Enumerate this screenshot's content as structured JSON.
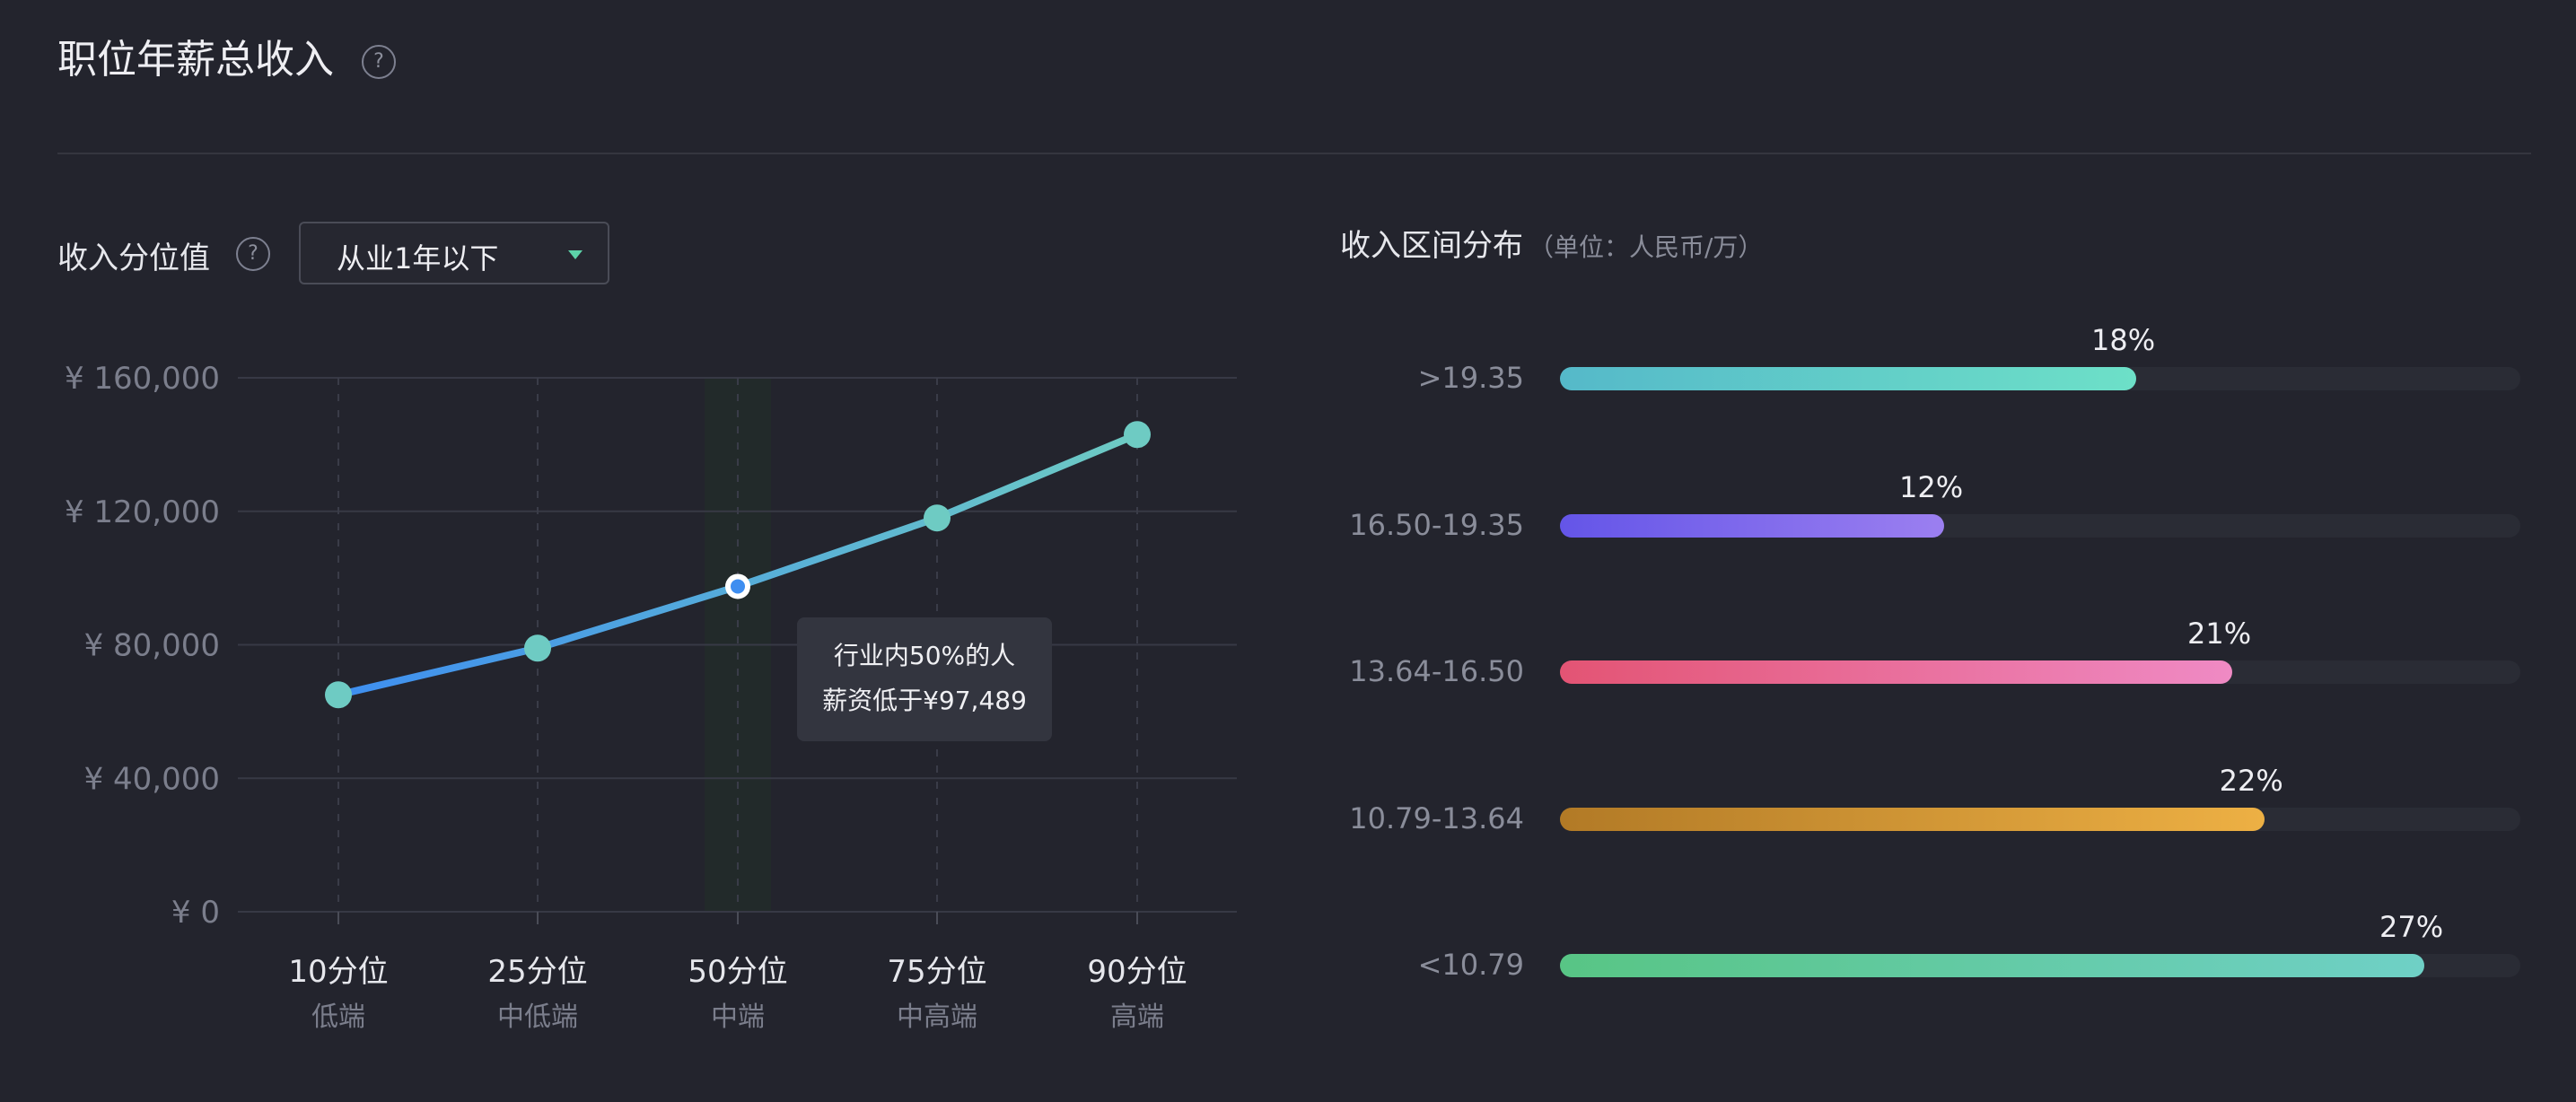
{
  "header": {
    "title": "职位年薪总收入"
  },
  "percentile": {
    "label": "收入分位值",
    "dropdown_value": "从业1年以下"
  },
  "tooltip": {
    "line1": "行业内50%的人",
    "line2": "薪资低于¥97,489"
  },
  "distribution": {
    "title": "收入区间分布",
    "unit": "（单位：人民币/万）"
  },
  "colors": {
    "background": "#23242d",
    "line_start": "#3e8ef0",
    "line_end": "#6ecbc3",
    "marker": "#6ecbc3"
  },
  "chart_data": [
    {
      "type": "line",
      "categories": [
        "10分位",
        "25分位",
        "50分位",
        "75分位",
        "90分位"
      ],
      "sublabels": [
        "低端",
        "中低端",
        "中端",
        "中高端",
        "高端"
      ],
      "series": [
        {
          "values": [
            65000,
            79000,
            97489,
            118000,
            143000
          ]
        }
      ],
      "yticks": [
        "¥ 0",
        "¥ 40,000",
        "¥ 80,000",
        "¥ 120,000",
        "¥ 160,000"
      ],
      "ylim": [
        0,
        160000
      ],
      "highlight_index": 2,
      "grid": true
    },
    {
      "type": "bar",
      "orientation": "horizontal",
      "categories": [
        ">19.35",
        "16.50-19.35",
        "13.64-16.50",
        "10.79-13.64",
        "<10.79"
      ],
      "values": [
        18,
        12,
        21,
        22,
        27
      ],
      "value_labels": [
        "18%",
        "12%",
        "21%",
        "22%",
        "27%"
      ],
      "xlim": [
        0,
        30
      ],
      "colors": [
        [
          "#55b9c9",
          "#6de0c8"
        ],
        [
          "#6455e8",
          "#9b7ff0"
        ],
        [
          "#e35474",
          "#ef8ac4"
        ],
        [
          "#b27a26",
          "#edb044"
        ],
        [
          "#58c585",
          "#6fd0c6"
        ]
      ]
    }
  ]
}
